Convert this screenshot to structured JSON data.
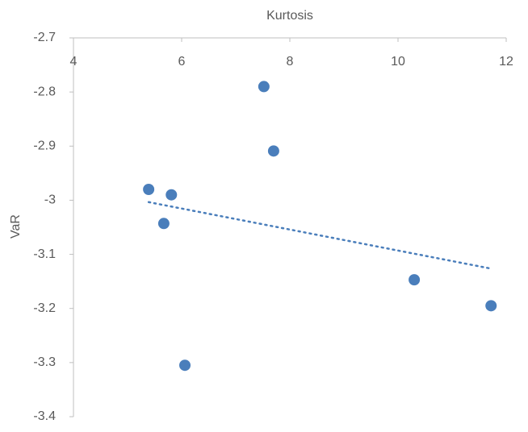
{
  "chart_data": {
    "type": "scatter",
    "xlabel": "Kurtosis",
    "ylabel": "VaR",
    "x": [
      5.39,
      5.81,
      5.67,
      6.06,
      7.52,
      7.7,
      10.3,
      11.72
    ],
    "values": [
      -2.98,
      -2.99,
      -3.043,
      -3.305,
      -2.79,
      -2.909,
      -3.147,
      -3.195
    ],
    "color": "#4a7ebb",
    "trendline": "linear",
    "xlim": [
      4,
      12
    ],
    "xticks": [
      4,
      6,
      8,
      10,
      12
    ],
    "ylim": [
      -3.4,
      -2.7
    ],
    "yticks": [
      -2.7,
      -2.8,
      -2.9,
      -3,
      -3.1,
      -3.2,
      -3.3,
      -3.4
    ],
    "xaxis_position": "top"
  }
}
